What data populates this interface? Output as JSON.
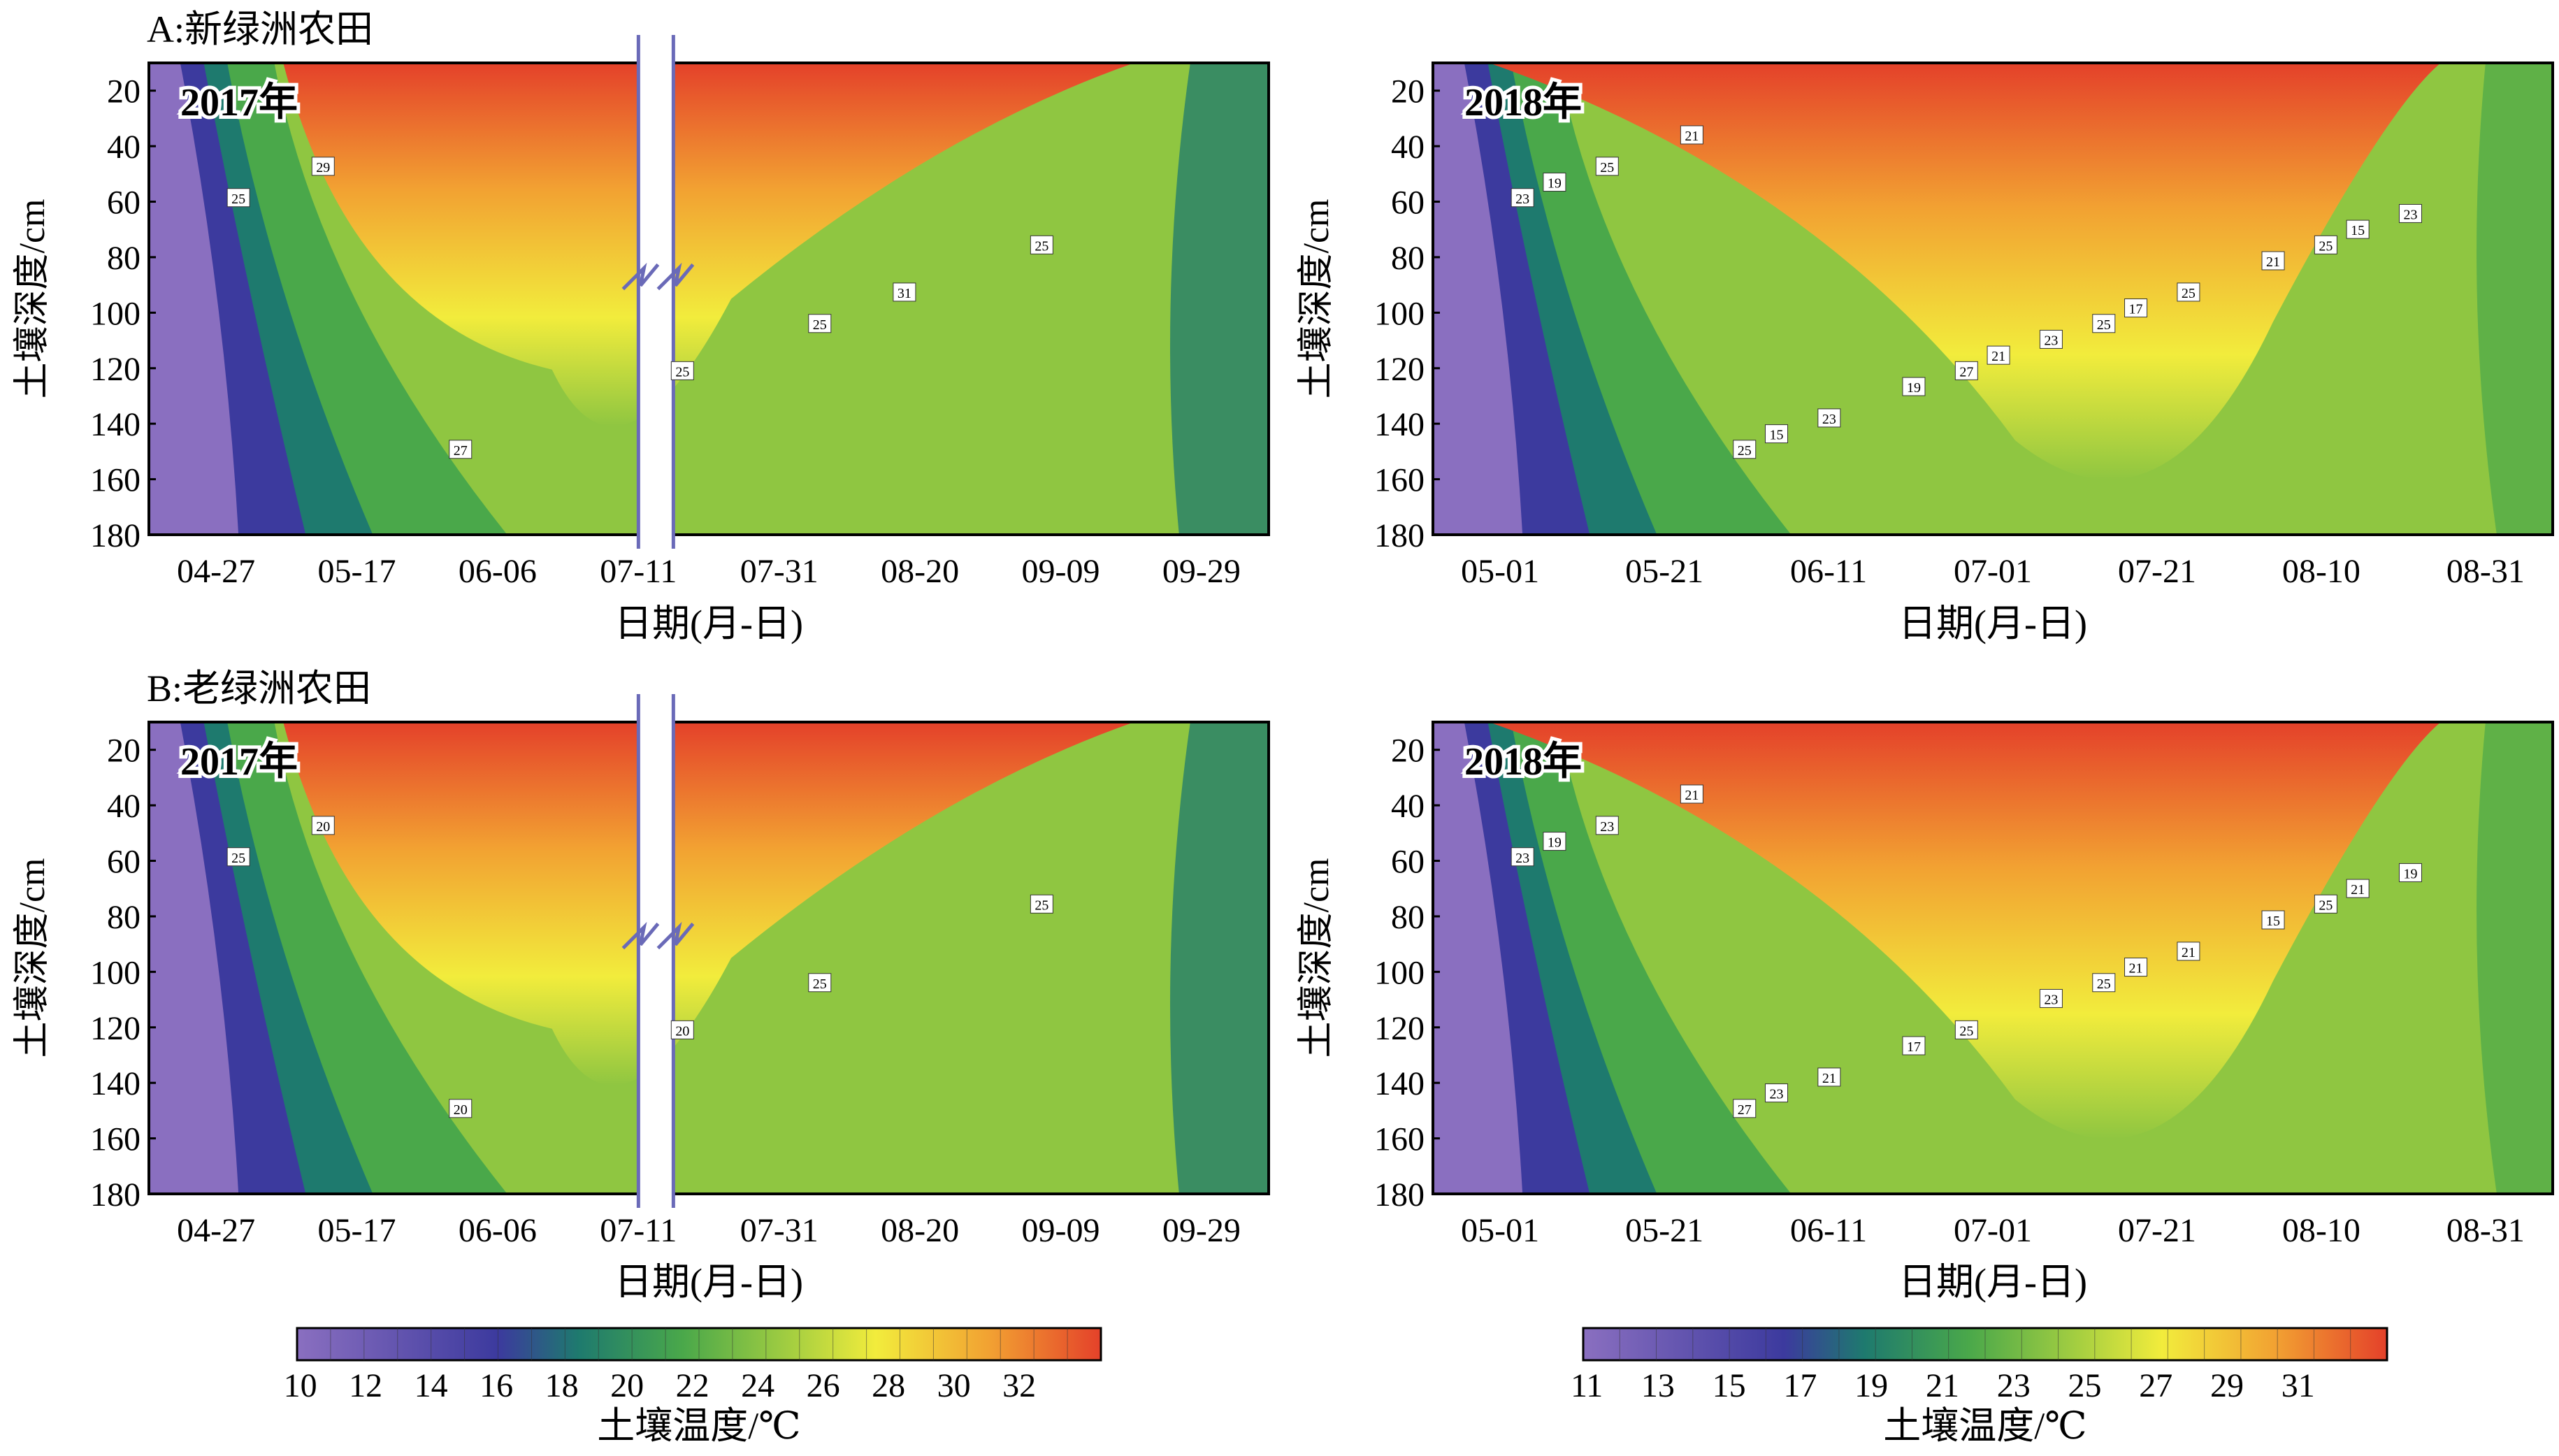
{
  "panels": [
    {
      "row_label": "A:新绿洲农田",
      "year_label": "2017年",
      "x_ticks": [
        "04-27",
        "05-17",
        "06-06",
        "07-11",
        "07-31",
        "08-20",
        "09-09",
        "09-29"
      ],
      "has_break": true,
      "y_ticks": [
        "20",
        "40",
        "60",
        "80",
        "100",
        "120",
        "140",
        "160",
        "180"
      ],
      "ylabel": "土壤深度/cm",
      "xlabel": "日期(月-日)",
      "contour_labels": [
        "25",
        "25",
        "27",
        "25",
        "25",
        "29",
        "31"
      ]
    },
    {
      "row_label": "",
      "year_label": "2018年",
      "x_ticks": [
        "05-01",
        "05-21",
        "06-11",
        "07-01",
        "07-21",
        "08-10",
        "08-31"
      ],
      "has_break": false,
      "y_ticks": [
        "20",
        "40",
        "60",
        "80",
        "100",
        "120",
        "140",
        "160",
        "180"
      ],
      "ylabel": "土壤深度/cm",
      "xlabel": "日期(月-日)",
      "contour_labels": [
        "23",
        "25",
        "25",
        "25",
        "27",
        "25",
        "25",
        "23",
        "23",
        "23",
        "21",
        "21",
        "19",
        "19",
        "17",
        "15",
        "15",
        "21"
      ]
    },
    {
      "row_label": "B:老绿洲农田",
      "year_label": "2017年",
      "x_ticks": [
        "04-27",
        "05-17",
        "06-06",
        "07-11",
        "07-31",
        "08-20",
        "09-09",
        "09-29"
      ],
      "has_break": true,
      "y_ticks": [
        "20",
        "40",
        "60",
        "80",
        "100",
        "120",
        "140",
        "160",
        "180"
      ],
      "ylabel": "土壤深度/cm",
      "xlabel": "日期(月-日)",
      "contour_labels": [
        "25",
        "25",
        "20",
        "25",
        "20",
        "20"
      ]
    },
    {
      "row_label": "",
      "year_label": "2018年",
      "x_ticks": [
        "05-01",
        "05-21",
        "06-11",
        "07-01",
        "07-21",
        "08-10",
        "08-31"
      ],
      "has_break": false,
      "y_ticks": [
        "20",
        "40",
        "60",
        "80",
        "100",
        "120",
        "140",
        "160",
        "180"
      ],
      "ylabel": "土壤深度/cm",
      "xlabel": "日期(月-日)",
      "contour_labels": [
        "23",
        "25",
        "27",
        "25",
        "25",
        "23",
        "21",
        "21",
        "19",
        "23",
        "21",
        "15",
        "17",
        "19",
        "21",
        "23",
        "21"
      ]
    }
  ],
  "colorbars": [
    {
      "ticks": [
        "10",
        "12",
        "14",
        "16",
        "18",
        "20",
        "22",
        "24",
        "26",
        "28",
        "30",
        "32"
      ],
      "label": "土壤温度/℃"
    },
    {
      "ticks": [
        "11",
        "13",
        "15",
        "17",
        "19",
        "21",
        "23",
        "25",
        "27",
        "29",
        "31"
      ],
      "label": "土壤温度/℃"
    }
  ],
  "colors": {
    "purple": "#8a6fc0",
    "blue": "#3c3a9e",
    "teal": "#1e7a6e",
    "green": "#4aa84a",
    "lightgreen": "#8fc641",
    "yellow": "#f2ec3c",
    "orange": "#f2a232",
    "red": "#e4412a"
  },
  "chart_data": {
    "type": "heatmap",
    "panels": [
      {
        "name": "A:新绿洲农田 2017年",
        "x_ticks": [
          "04-27",
          "05-17",
          "06-06",
          "07-11",
          "07-31",
          "08-20",
          "09-09",
          "09-29"
        ],
        "y_ticks": [
          20,
          40,
          60,
          80,
          100,
          120,
          140,
          160,
          180
        ],
        "ylim": [
          10,
          180
        ],
        "xlabel": "日期(月-日)",
        "ylabel": "土壤深度/cm",
        "contour_labels": [
          25,
          25,
          27,
          25,
          25,
          29,
          31
        ],
        "broken_x_axis": true
      },
      {
        "name": "A:新绿洲农田 2018年",
        "x_ticks": [
          "05-01",
          "05-21",
          "06-11",
          "07-01",
          "07-21",
          "08-10",
          "08-31"
        ],
        "y_ticks": [
          20,
          40,
          60,
          80,
          100,
          120,
          140,
          160,
          180
        ],
        "ylim": [
          10,
          180
        ],
        "xlabel": "日期(月-日)",
        "ylabel": "土壤深度/cm",
        "contour_labels": [
          23,
          25,
          25,
          25,
          27,
          25,
          25,
          23,
          23,
          23,
          21,
          21,
          19,
          19,
          17,
          15,
          15,
          21
        ]
      },
      {
        "name": "B:老绿洲农田 2017年",
        "x_ticks": [
          "04-27",
          "05-17",
          "06-06",
          "07-11",
          "07-31",
          "08-20",
          "09-09",
          "09-29"
        ],
        "y_ticks": [
          20,
          40,
          60,
          80,
          100,
          120,
          140,
          160,
          180
        ],
        "ylim": [
          10,
          180
        ],
        "xlabel": "日期(月-日)",
        "ylabel": "土壤深度/cm",
        "contour_labels": [
          25,
          25,
          20,
          25,
          20,
          20
        ],
        "broken_x_axis": true
      },
      {
        "name": "B:老绿洲农田 2018年",
        "x_ticks": [
          "05-01",
          "05-21",
          "06-11",
          "07-01",
          "07-21",
          "08-10",
          "08-31"
        ],
        "y_ticks": [
          20,
          40,
          60,
          80,
          100,
          120,
          140,
          160,
          180
        ],
        "ylim": [
          10,
          180
        ],
        "xlabel": "日期(月-日)",
        "ylabel": "土壤深度/cm",
        "contour_labels": [
          23,
          25,
          27,
          25,
          25,
          23,
          21,
          21,
          19,
          23,
          21,
          15,
          17,
          19,
          21,
          23,
          21
        ]
      }
    ],
    "colorbars": [
      {
        "ticks": [
          10,
          12,
          14,
          16,
          18,
          20,
          22,
          24,
          26,
          28,
          30,
          32
        ],
        "label": "土壤温度/℃"
      },
      {
        "ticks": [
          11,
          13,
          15,
          17,
          19,
          21,
          23,
          25,
          27,
          29,
          31
        ],
        "label": "土壤温度/℃"
      }
    ]
  }
}
